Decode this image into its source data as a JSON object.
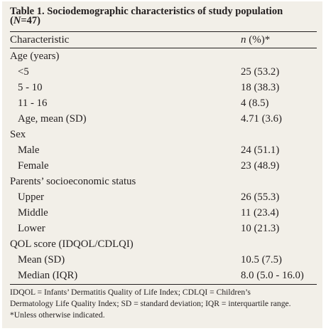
{
  "table": {
    "title_prefix": "Table 1. Sociodemographic characteristics of study population",
    "title_open": "(",
    "title_n": "N",
    "title_count": "=47)",
    "col_characteristic": "Characteristic",
    "col_n": "n",
    "col_pct": " (%)*",
    "rows": [
      {
        "label": "Age (years)",
        "value": ""
      },
      {
        "label": "<5",
        "value": "25 (53.2)"
      },
      {
        "label": "5 - 10",
        "value": "18 (38.3)"
      },
      {
        "label": "11 - 16",
        "value": "4 (8.5)"
      },
      {
        "label": "Age, mean (SD)",
        "value": "4.71 (3.6)"
      },
      {
        "label": "Sex",
        "value": ""
      },
      {
        "label": "Male",
        "value": "24 (51.1)"
      },
      {
        "label": "Female",
        "value": "23 (48.9)"
      },
      {
        "label": "Parents’ socioeconomic status",
        "value": ""
      },
      {
        "label": "Upper",
        "value": "26 (55.3)"
      },
      {
        "label": "Middle",
        "value": "11 (23.4)"
      },
      {
        "label": "Lower",
        "value": "10 (21.3)"
      },
      {
        "label": "QOL score (IDQOL/CDLQI)",
        "value": ""
      },
      {
        "label": "Mean (SD)",
        "value": "10.5 (7.5)"
      },
      {
        "label": "Median (IQR)",
        "value": "8.0 (5.0 - 16.0)"
      }
    ],
    "footnote_1": "IDQOL = Infants’ Dermatitis Quality of Life Index; CDLQI = Children’s",
    "footnote_2": "Dermatology Life Quality Index; SD = standard deviation; IQR = interquartile range.",
    "footnote_3": "*Unless otherwise indicated."
  }
}
